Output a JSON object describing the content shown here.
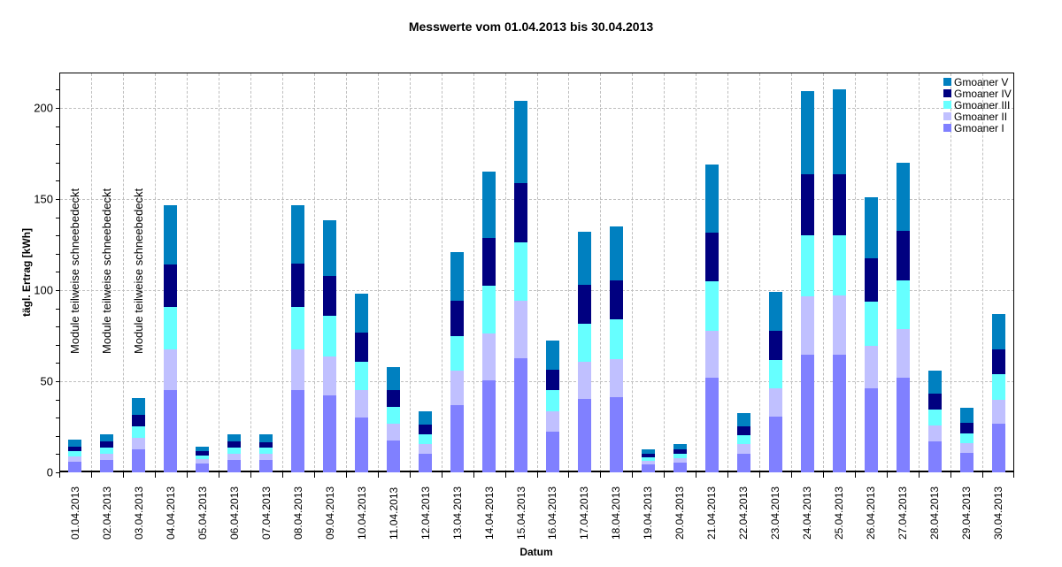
{
  "chart_data": {
    "type": "bar",
    "stacked": true,
    "title": "Messwerte vom 01.04.2013 bis 30.04.2013",
    "xlabel": "Datum",
    "ylabel": "tägl. Ertrag [kWh]",
    "ylim": [
      0,
      220
    ],
    "yticks": [
      0,
      50,
      100,
      150,
      200
    ],
    "grid": true,
    "legend_position": "top-right",
    "categories": [
      "01.04.2013",
      "02.04.2013",
      "03.04.2013",
      "04.04.2013",
      "05.04.2013",
      "06.04.2013",
      "07.04.2013",
      "08.04.2013",
      "09.04.2013",
      "10.04.2013",
      "11.04.2013",
      "12.04.2013",
      "13.04.2013",
      "14.04.2013",
      "15.04.2013",
      "16.04.2013",
      "17.04.2013",
      "18.04.2013",
      "19.04.2013",
      "20.04.2013",
      "21.04.2013",
      "22.04.2013",
      "23.04.2013",
      "24.04.2013",
      "25.04.2013",
      "26.04.2013",
      "27.04.2013",
      "28.04.2013",
      "29.04.2013",
      "30.04.2013"
    ],
    "series": [
      {
        "name": "Gmoaner I",
        "color": "#8080ff",
        "values": [
          5.8,
          6.8,
          12.6,
          45.0,
          4.9,
          6.8,
          6.8,
          45.0,
          42.2,
          30.1,
          17.5,
          10.2,
          36.9,
          50.5,
          62.6,
          22.3,
          40.3,
          41.3,
          4.4,
          5.3,
          51.9,
          10.2,
          30.6,
          64.6,
          64.6,
          46.1,
          51.9,
          17.0,
          10.7,
          26.7
        ]
      },
      {
        "name": "Gmoaner II",
        "color": "#c0c0ff",
        "values": [
          2.9,
          3.4,
          6.3,
          22.5,
          2.4,
          3.4,
          3.4,
          22.5,
          21.4,
          15.0,
          9.2,
          5.3,
          18.9,
          25.7,
          31.6,
          11.2,
          20.4,
          20.8,
          1.9,
          2.4,
          25.7,
          5.4,
          15.5,
          32.0,
          32.5,
          23.3,
          26.7,
          8.7,
          5.3,
          13.1
        ]
      },
      {
        "name": "Gmoaner III",
        "color": "#66ffff",
        "values": [
          3.0,
          3.4,
          6.3,
          23.3,
          1.9,
          3.4,
          3.4,
          23.3,
          22.4,
          15.6,
          9.2,
          5.4,
          19.0,
          26.2,
          32.0,
          11.6,
          20.9,
          21.9,
          1.9,
          2.5,
          27.2,
          4.8,
          15.5,
          33.5,
          33.0,
          24.3,
          26.7,
          8.6,
          5.3,
          13.9
        ]
      },
      {
        "name": "Gmoaner IV",
        "color": "#000080",
        "values": [
          2.4,
          3.4,
          6.4,
          23.2,
          2.5,
          3.4,
          2.9,
          23.7,
          22.0,
          16.0,
          9.2,
          5.3,
          19.4,
          26.2,
          32.5,
          11.2,
          21.3,
          21.3,
          2.0,
          2.5,
          26.7,
          4.9,
          16.0,
          33.5,
          33.5,
          23.8,
          27.2,
          8.8,
          5.8,
          13.6
        ]
      },
      {
        "name": "Gmoaner V",
        "color": "#0080c0",
        "values": [
          3.9,
          3.9,
          9.2,
          32.6,
          2.4,
          3.9,
          4.4,
          32.1,
          30.3,
          21.3,
          12.7,
          7.3,
          26.7,
          36.4,
          45.2,
          16.0,
          29.1,
          29.7,
          2.4,
          3.0,
          37.4,
          7.3,
          21.4,
          45.6,
          46.6,
          33.5,
          37.4,
          12.6,
          8.2,
          19.5
        ]
      }
    ],
    "totals": [
      18.0,
      20.9,
      40.8,
      146.6,
      14.1,
      20.9,
      20.9,
      146.6,
      138.3,
      98.0,
      57.8,
      33.5,
      120.9,
      165.0,
      203.9,
      72.3,
      132.0,
      135.0,
      12.6,
      15.7,
      168.9,
      32.6,
      99.0,
      209.2,
      210.2,
      151.0,
      169.9,
      55.7,
      35.3,
      86.8
    ],
    "annotations": [
      {
        "category": "01.04.2013",
        "text": "Module teilweise schneebedeckt"
      },
      {
        "category": "02.04.2013",
        "text": "Module teilweise schneebedeckt"
      },
      {
        "category": "03.04.2013",
        "text": "Module teilweise schneebedeckt"
      }
    ]
  },
  "legend": [
    {
      "label": "Gmoaner V",
      "color": "#0080c0"
    },
    {
      "label": "Gmoaner IV",
      "color": "#000080"
    },
    {
      "label": "Gmoaner III",
      "color": "#66ffff"
    },
    {
      "label": "Gmoaner II",
      "color": "#c0c0ff"
    },
    {
      "label": "Gmoaner I",
      "color": "#8080ff"
    }
  ]
}
